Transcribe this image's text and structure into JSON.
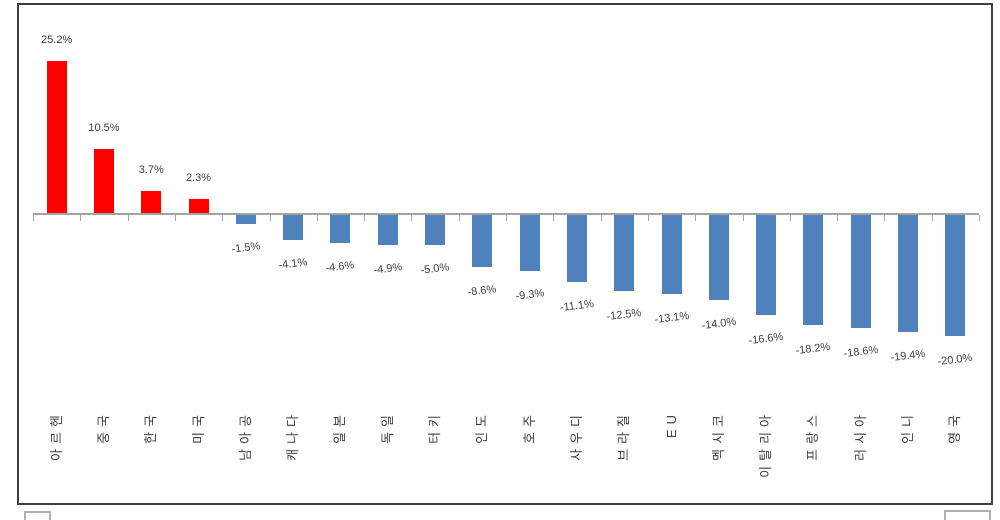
{
  "chart_data": {
    "type": "bar",
    "title": "",
    "xlabel": "",
    "ylabel": "",
    "unit": "%",
    "categories": [
      "아르헨",
      "중국",
      "한국",
      "미국",
      "남아공",
      "캐나다",
      "일본",
      "독일",
      "터키",
      "인도",
      "호주",
      "사우디",
      "브라질",
      "EU",
      "멕시코",
      "이탈리아",
      "프랑스",
      "러시아",
      "인니",
      "영국"
    ],
    "values": [
      25.2,
      10.5,
      3.7,
      2.3,
      -1.5,
      -4.1,
      -4.6,
      -4.9,
      -5.0,
      -8.6,
      -9.3,
      -11.1,
      -12.5,
      -13.1,
      -14.0,
      -16.6,
      -18.2,
      -18.6,
      -19.4,
      -20.0
    ],
    "value_labels": [
      "25.2%",
      "10.5%",
      "3.7%",
      "2.3%",
      "-1.5%",
      "-4.1%",
      "-4.6%",
      "-4.9%",
      "-5.0%",
      "-8.6%",
      "-9.3%",
      "-11.1%",
      "-12.5%",
      "-13.1%",
      "-14.0%",
      "-16.6%",
      "-18.2%",
      "-18.6%",
      "-19.4%",
      "-20.0%"
    ],
    "baseline": 0,
    "ylim": [
      -22,
      28
    ],
    "grid": false,
    "legend": false,
    "positive_bar_color": "#FF0000",
    "negative_bar_color": "#4F81BD",
    "label_color": "#3F3F3F",
    "axis_color": "#A3A3A3",
    "frame_color": "#3F3F3F",
    "category_label_rotation_deg": -90,
    "negative_label_tilt_deg": -7
  }
}
